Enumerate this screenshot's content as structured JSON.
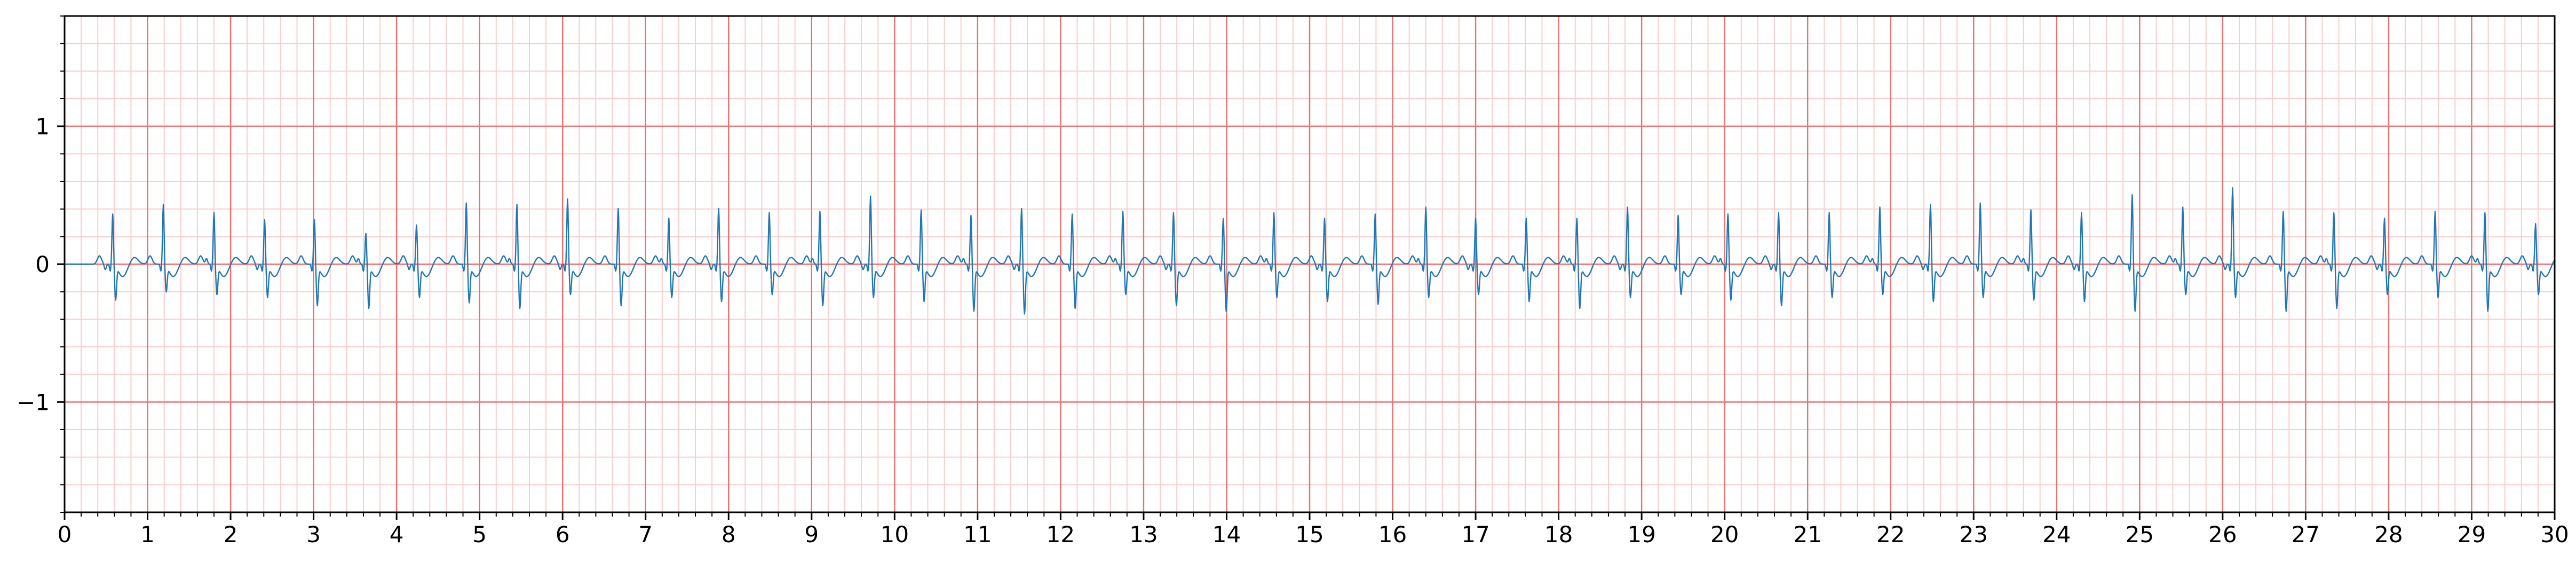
{
  "chart_data": {
    "type": "line",
    "title": "",
    "xlabel": "",
    "ylabel": "",
    "xlim": [
      0,
      30
    ],
    "ylim": [
      -1.8,
      1.8
    ],
    "x_ticks": [
      0,
      1,
      2,
      3,
      4,
      5,
      6,
      7,
      8,
      9,
      10,
      11,
      12,
      13,
      14,
      15,
      16,
      17,
      18,
      19,
      20,
      21,
      22,
      23,
      24,
      25,
      26,
      27,
      28,
      29,
      30
    ],
    "x_tick_labels": [
      "0",
      "1",
      "2",
      "3",
      "4",
      "5",
      "6",
      "7",
      "8",
      "9",
      "10",
      "11",
      "12",
      "13",
      "14",
      "15",
      "16",
      "17",
      "18",
      "19",
      "20",
      "21",
      "22",
      "23",
      "24",
      "25",
      "26",
      "27",
      "28",
      "29",
      "30"
    ],
    "y_ticks": [
      -1,
      0,
      1
    ],
    "y_tick_labels": [
      "−1",
      "0",
      "1"
    ],
    "x_minor_step": 0.2,
    "y_minor_step": 0.2,
    "grid": true,
    "grid_style": "ecg paper: major lines every 1 s / 1 unit, minor lines every 0.2",
    "colors": {
      "major_grid": "#f07070",
      "minor_grid": "#fbcccc",
      "signal": "#1f77b4",
      "axes": "#000000"
    },
    "series": [
      {
        "r_peak_times": [
          0.58,
          1.19,
          1.8,
          2.41,
          3.01,
          3.63,
          4.24,
          4.84,
          5.45,
          6.06,
          6.67,
          7.28,
          7.88,
          8.49,
          9.1,
          9.71,
          10.32,
          10.92,
          11.53,
          12.14,
          12.75,
          13.36,
          13.96,
          14.57,
          15.18,
          15.79,
          16.4,
          17.0,
          17.61,
          18.22,
          18.83,
          19.44,
          20.04,
          20.65,
          21.26,
          21.87,
          22.48,
          23.08,
          23.69,
          24.3,
          24.91,
          25.52,
          26.12,
          26.73,
          27.34,
          27.95,
          28.56,
          29.16,
          29.77
        ],
        "r_peak_amplitudes": [
          0.37,
          0.44,
          0.38,
          0.33,
          0.33,
          0.23,
          0.29,
          0.45,
          0.44,
          0.48,
          0.41,
          0.34,
          0.41,
          0.38,
          0.39,
          0.5,
          0.4,
          0.36,
          0.41,
          0.37,
          0.39,
          0.38,
          0.34,
          0.38,
          0.34,
          0.37,
          0.42,
          0.34,
          0.34,
          0.34,
          0.42,
          0.36,
          0.37,
          0.38,
          0.38,
          0.42,
          0.44,
          0.45,
          0.4,
          0.38,
          0.51,
          0.42,
          0.56,
          0.39,
          0.38,
          0.34,
          0.39,
          0.38,
          0.3
        ],
        "s_trough_amplitudes": [
          -0.24,
          -0.18,
          -0.2,
          -0.22,
          -0.28,
          -0.3,
          -0.22,
          -0.26,
          -0.3,
          -0.2,
          -0.28,
          -0.22,
          -0.25,
          -0.2,
          -0.28,
          -0.22,
          -0.25,
          -0.32,
          -0.34,
          -0.3,
          -0.2,
          -0.28,
          -0.32,
          -0.22,
          -0.25,
          -0.27,
          -0.22,
          -0.2,
          -0.25,
          -0.3,
          -0.22,
          -0.2,
          -0.24,
          -0.28,
          -0.22,
          -0.2,
          -0.25,
          -0.22,
          -0.24,
          -0.25,
          -0.32,
          -0.2,
          -0.22,
          -0.32,
          -0.3,
          -0.2,
          -0.22,
          -0.32,
          -0.2
        ],
        "baseline": 0.0
      }
    ]
  }
}
